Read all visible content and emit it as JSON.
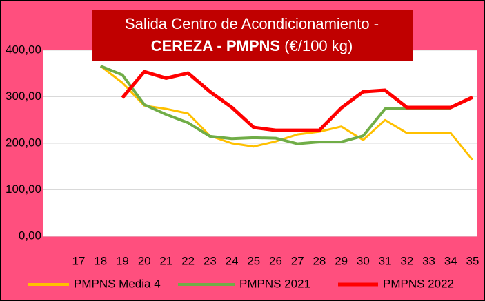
{
  "chart_data": {
    "type": "line",
    "title": "Salida Centro de Acondicionamiento -",
    "subtitle_bold": "CEREZA - PMPNS",
    "subtitle": "(€/100 kg)",
    "categories": [
      "17",
      "18",
      "19",
      "20",
      "21",
      "22",
      "23",
      "24",
      "25",
      "26",
      "27",
      "28",
      "29",
      "30",
      "31",
      "32",
      "33",
      "34",
      "35"
    ],
    "series": [
      {
        "name": "PMPNS Media 4",
        "color": "#ffc000",
        "values": [
          null,
          366,
          330,
          281,
          274,
          264,
          216,
          200,
          193,
          204,
          219,
          225,
          236,
          207,
          250,
          222,
          222,
          222,
          164
        ]
      },
      {
        "name": "PMPNS 2021",
        "color": "#70ad47",
        "values": [
          null,
          366,
          347,
          283,
          262,
          244,
          215,
          210,
          212,
          211,
          199,
          203,
          203,
          216,
          274,
          274,
          274,
          274,
          null
        ]
      },
      {
        "name": "PMPNS 2022",
        "color": "#ff0000",
        "values": [
          null,
          null,
          298,
          354,
          340,
          351,
          311,
          277,
          234,
          228,
          228,
          228,
          276,
          311,
          314,
          277,
          277,
          277,
          299
        ]
      }
    ],
    "ylim": [
      0,
      400
    ],
    "yticks": [
      {
        "value": 0,
        "label": "0,00"
      },
      {
        "value": 100,
        "label": "100,00"
      },
      {
        "value": 200,
        "label": "200,00"
      },
      {
        "value": 300,
        "label": "300,00"
      },
      {
        "value": 400,
        "label": "400,00"
      }
    ],
    "grid": true,
    "legend": "bottom"
  }
}
